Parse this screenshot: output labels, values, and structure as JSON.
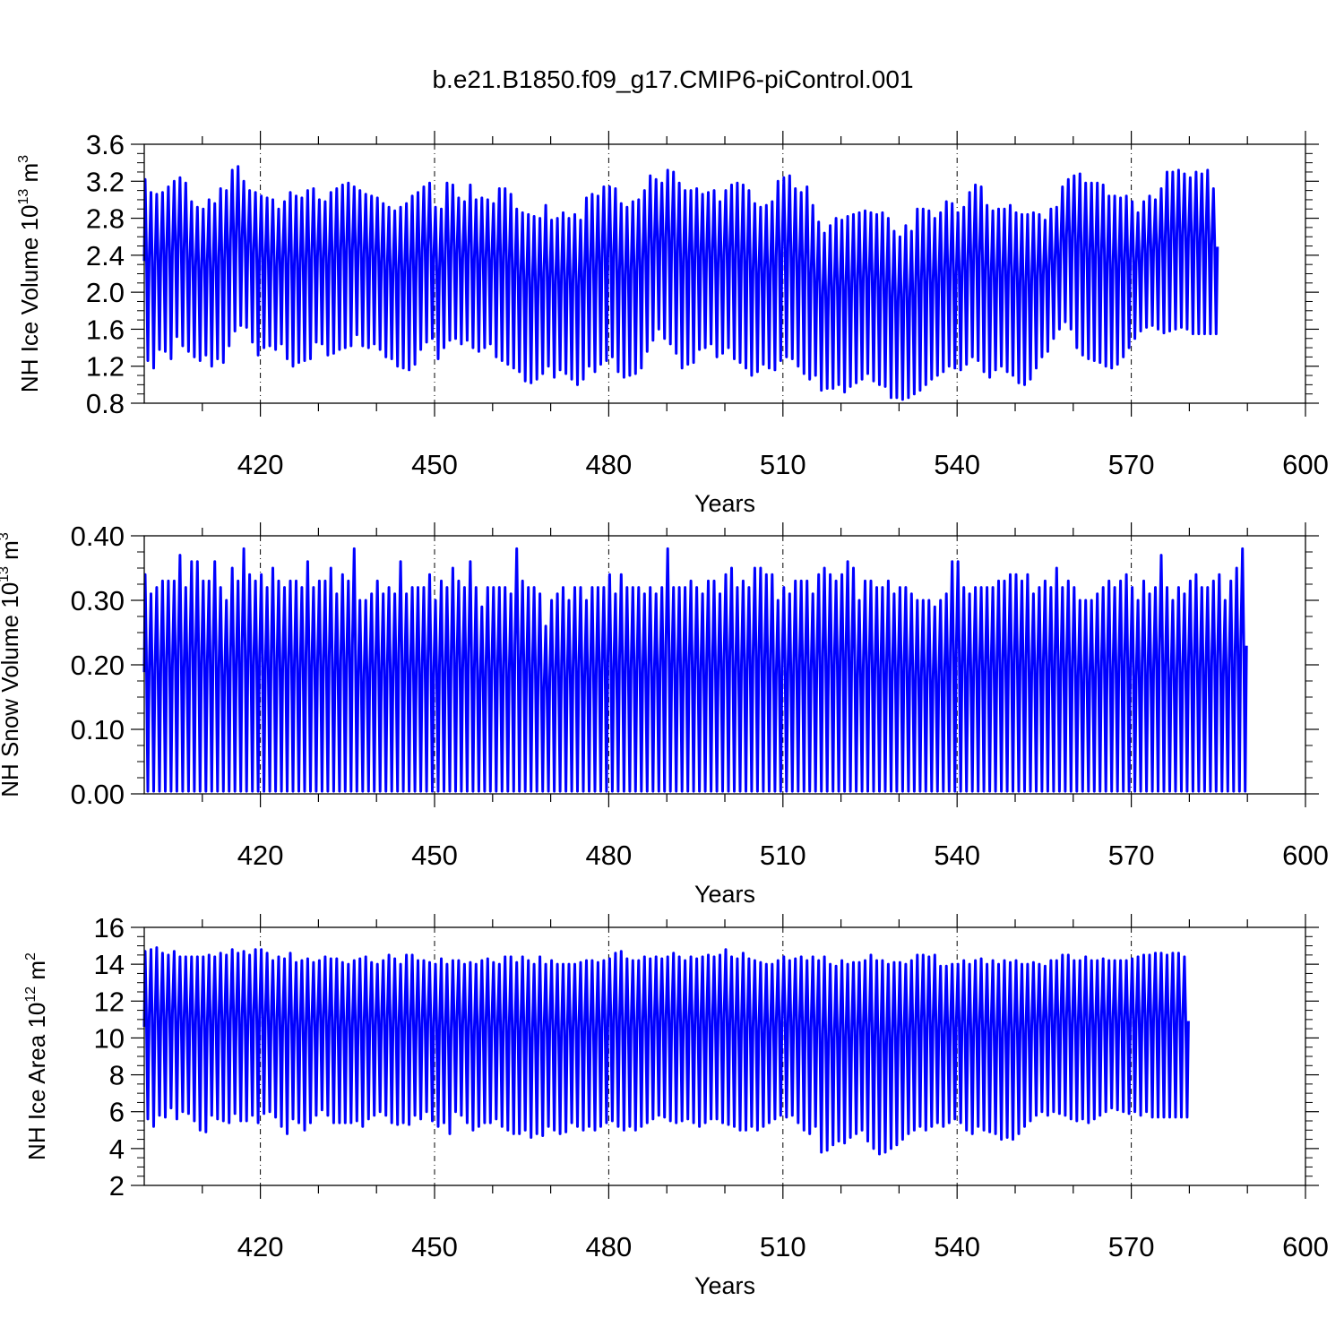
{
  "title": "b.e21.B1850.f09_g17.CMIP6-piControl.001",
  "colors": {
    "series": "#0000ff",
    "axis": "#000000",
    "grid": "#000000"
  },
  "chart_data": [
    {
      "type": "line",
      "ylabel": {
        "main": "NH Ice Volume 10",
        "exponent": "13",
        "unit": " m",
        "unit_exponent": "3"
      },
      "xlabel": "Years",
      "xlim": [
        400,
        600
      ],
      "ylim": [
        0.8,
        3.6
      ],
      "xticks": [
        420,
        450,
        480,
        510,
        540,
        570,
        600
      ],
      "yticks": [
        0.8,
        1.2,
        1.6,
        2.0,
        2.4,
        2.8,
        3.2,
        3.6
      ],
      "yticklabels": [
        "0.8",
        "1.2",
        "1.6",
        "2.0",
        "2.4",
        "2.8",
        "3.2",
        "3.6"
      ],
      "grid": "vertical dashed at major x ticks",
      "x_start": 400,
      "period_years": 1,
      "series": [
        {
          "annual_max": [
            3.22,
            3.08,
            3.06,
            3.08,
            3.14,
            3.2,
            3.24,
            3.18,
            2.98,
            2.92,
            2.9,
            3.0,
            2.96,
            3.12,
            3.1,
            3.32,
            3.36,
            3.2,
            3.1,
            3.08,
            3.04,
            3.02,
            3.0,
            2.9,
            2.98,
            3.08,
            3.04,
            3.02,
            3.1,
            3.12,
            3.0,
            2.98,
            3.08,
            3.12,
            3.16,
            3.18,
            3.14,
            3.1,
            3.06,
            3.04,
            3.02,
            2.96,
            2.92,
            2.88,
            2.92,
            2.96,
            3.04,
            3.08,
            3.14,
            3.18,
            2.92,
            2.9,
            3.18,
            3.16,
            3.02,
            2.98,
            3.16,
            3.0,
            3.02,
            3.0,
            2.96,
            3.12,
            3.12,
            3.06,
            2.9,
            2.86,
            2.84,
            2.82,
            2.8,
            2.94,
            2.78,
            2.8,
            2.86,
            2.8,
            2.84,
            2.78,
            3.02,
            3.06,
            3.04,
            3.14,
            3.14,
            3.12,
            2.96,
            2.92,
            2.98,
            3.0,
            3.1,
            3.26,
            3.22,
            3.18,
            3.32,
            3.3,
            3.18,
            3.1,
            3.1,
            3.12,
            3.06,
            3.08,
            3.1,
            2.98,
            3.1,
            3.16,
            3.18,
            3.16,
            3.1,
            2.96,
            2.92,
            2.94,
            2.98,
            3.2,
            3.24,
            3.26,
            3.12,
            3.08,
            3.14,
            2.94,
            2.76,
            2.64,
            2.72,
            2.8,
            2.78,
            2.82,
            2.84,
            2.86,
            2.88,
            2.86,
            2.84,
            2.86,
            2.8,
            2.66,
            2.6,
            2.72,
            2.66,
            2.9,
            2.9,
            2.88,
            2.8,
            2.86,
            2.98,
            2.96,
            2.86,
            2.92,
            3.08,
            3.16,
            3.14,
            2.94,
            2.88,
            2.9,
            2.9,
            2.94,
            2.86,
            2.84,
            2.84,
            2.86,
            2.84,
            2.78,
            2.9,
            2.92,
            3.14,
            3.22,
            3.26,
            3.28,
            3.18,
            3.18,
            3.18,
            3.16,
            3.04,
            3.04,
            3.02,
            3.04,
            2.98,
            2.86,
            2.98,
            3.04,
            3.0,
            3.12,
            3.3,
            3.3,
            3.32,
            3.28,
            3.24,
            3.3,
            3.28,
            3.32,
            3.12
          ],
          "annual_min": [
            1.26,
            1.18,
            1.38,
            1.36,
            1.28,
            1.52,
            1.42,
            1.36,
            1.3,
            1.26,
            1.32,
            1.2,
            1.28,
            1.24,
            1.42,
            1.58,
            1.64,
            1.62,
            1.46,
            1.32,
            1.4,
            1.42,
            1.38,
            1.44,
            1.28,
            1.2,
            1.24,
            1.26,
            1.28,
            1.46,
            1.44,
            1.32,
            1.34,
            1.38,
            1.4,
            1.42,
            1.54,
            1.42,
            1.4,
            1.44,
            1.38,
            1.3,
            1.28,
            1.2,
            1.18,
            1.16,
            1.22,
            1.38,
            1.46,
            1.5,
            1.28,
            1.4,
            1.48,
            1.5,
            1.44,
            1.48,
            1.4,
            1.36,
            1.4,
            1.44,
            1.3,
            1.26,
            1.22,
            1.18,
            1.14,
            1.04,
            1.02,
            1.06,
            1.12,
            1.2,
            1.08,
            1.16,
            1.12,
            1.06,
            1.0,
            1.06,
            1.2,
            1.14,
            1.22,
            1.26,
            1.3,
            1.14,
            1.08,
            1.1,
            1.12,
            1.18,
            1.36,
            1.48,
            1.6,
            1.5,
            1.44,
            1.34,
            1.18,
            1.22,
            1.24,
            1.38,
            1.4,
            1.44,
            1.3,
            1.34,
            1.4,
            1.28,
            1.24,
            1.18,
            1.1,
            1.14,
            1.22,
            1.18,
            1.16,
            1.26,
            1.3,
            1.28,
            1.2,
            1.12,
            1.06,
            1.1,
            0.94,
            0.96,
            0.96,
            1.0,
            0.92,
            0.98,
            1.02,
            1.06,
            1.12,
            1.04,
            1.0,
            0.98,
            0.86,
            0.86,
            0.84,
            0.86,
            0.9,
            0.94,
            1.0,
            1.06,
            1.1,
            1.14,
            1.2,
            1.18,
            1.16,
            1.22,
            1.3,
            1.26,
            1.14,
            1.08,
            1.16,
            1.2,
            1.14,
            1.1,
            1.02,
            1.0,
            1.06,
            1.18,
            1.3,
            1.36,
            1.5,
            1.6,
            1.68,
            1.6,
            1.4,
            1.32,
            1.28,
            1.26,
            1.24,
            1.2,
            1.18,
            1.22,
            1.3,
            1.4,
            1.5,
            1.58,
            1.62,
            1.64,
            1.6,
            1.56,
            1.58,
            1.6,
            1.62,
            1.6,
            1.55
          ]
        }
      ]
    },
    {
      "type": "line",
      "ylabel": {
        "main": "NH Snow Volume 10",
        "exponent": "13",
        "unit": " m",
        "unit_exponent": "3"
      },
      "xlabel": "Years",
      "xlim": [
        400,
        600
      ],
      "ylim": [
        0.0,
        0.4
      ],
      "xticks": [
        420,
        450,
        480,
        510,
        540,
        570,
        600
      ],
      "yticks": [
        0.0,
        0.1,
        0.2,
        0.3,
        0.4
      ],
      "yticklabels": [
        "0.00",
        "0.10",
        "0.20",
        "0.30",
        "0.40"
      ],
      "grid": "vertical dashed at major x ticks",
      "x_start": 400,
      "period_years": 1,
      "series": [
        {
          "annual_max": [
            0.34,
            0.31,
            0.32,
            0.33,
            0.33,
            0.33,
            0.37,
            0.32,
            0.36,
            0.36,
            0.33,
            0.33,
            0.36,
            0.32,
            0.3,
            0.35,
            0.33,
            0.38,
            0.34,
            0.33,
            0.34,
            0.32,
            0.35,
            0.33,
            0.32,
            0.33,
            0.33,
            0.32,
            0.36,
            0.32,
            0.33,
            0.33,
            0.35,
            0.31,
            0.34,
            0.33,
            0.38,
            0.3,
            0.3,
            0.31,
            0.33,
            0.31,
            0.32,
            0.31,
            0.36,
            0.31,
            0.32,
            0.32,
            0.32,
            0.34,
            0.3,
            0.33,
            0.32,
            0.35,
            0.33,
            0.32,
            0.36,
            0.32,
            0.29,
            0.32,
            0.32,
            0.32,
            0.32,
            0.31,
            0.38,
            0.33,
            0.32,
            0.32,
            0.31,
            0.26,
            0.3,
            0.31,
            0.32,
            0.3,
            0.32,
            0.32,
            0.3,
            0.32,
            0.32,
            0.32,
            0.34,
            0.31,
            0.34,
            0.32,
            0.32,
            0.32,
            0.31,
            0.32,
            0.31,
            0.32,
            0.38,
            0.32,
            0.32,
            0.32,
            0.33,
            0.32,
            0.31,
            0.33,
            0.33,
            0.31,
            0.34,
            0.35,
            0.32,
            0.33,
            0.32,
            0.35,
            0.35,
            0.34,
            0.34,
            0.3,
            0.32,
            0.31,
            0.33,
            0.33,
            0.33,
            0.31,
            0.34,
            0.35,
            0.34,
            0.33,
            0.34,
            0.36,
            0.35,
            0.3,
            0.33,
            0.33,
            0.32,
            0.32,
            0.33,
            0.31,
            0.32,
            0.32,
            0.31,
            0.3,
            0.3,
            0.3,
            0.29,
            0.3,
            0.31,
            0.36,
            0.36,
            0.32,
            0.31,
            0.32,
            0.32,
            0.32,
            0.32,
            0.33,
            0.33,
            0.34,
            0.34,
            0.33,
            0.34,
            0.31,
            0.32,
            0.33,
            0.32,
            0.35,
            0.32,
            0.33,
            0.32,
            0.3,
            0.3,
            0.3,
            0.31,
            0.32,
            0.33,
            0.32,
            0.33,
            0.34,
            0.32,
            0.3,
            0.33,
            0.31,
            0.32,
            0.37,
            0.32,
            0.3,
            0.32,
            0.31,
            0.33,
            0.34,
            0.32,
            0.32,
            0.33,
            0.34,
            0.3,
            0.33,
            0.35,
            0.38
          ],
          "annual_min": [
            0.004
          ]
        }
      ]
    },
    {
      "type": "line",
      "ylabel": {
        "main": "NH Ice Area 10",
        "exponent": "12",
        "unit": " m",
        "unit_exponent": "2"
      },
      "xlabel": "Years",
      "xlim": [
        400,
        600
      ],
      "ylim": [
        2,
        16
      ],
      "xticks": [
        420,
        450,
        480,
        510,
        540,
        570,
        600
      ],
      "yticks": [
        2,
        4,
        6,
        8,
        10,
        12,
        14,
        16
      ],
      "yticklabels": [
        "2",
        "4",
        "6",
        "8",
        "10",
        "12",
        "14",
        "16"
      ],
      "grid": "vertical dashed at major x ticks",
      "x_start": 400,
      "period_years": 1,
      "series": [
        {
          "annual_max": [
            14.7,
            14.8,
            14.9,
            14.6,
            14.5,
            14.7,
            14.4,
            14.4,
            14.4,
            14.4,
            14.4,
            14.5,
            14.4,
            14.6,
            14.5,
            14.8,
            14.6,
            14.7,
            14.5,
            14.8,
            14.8,
            14.6,
            14.2,
            14.4,
            14.3,
            14.6,
            14.1,
            14.2,
            14.3,
            14.1,
            14.2,
            14.4,
            14.3,
            14.3,
            14.1,
            14.0,
            14.2,
            14.3,
            14.4,
            14.1,
            14.0,
            14.2,
            14.5,
            14.3,
            14.0,
            14.5,
            14.5,
            14.2,
            14.2,
            14.1,
            14.0,
            14.3,
            14.0,
            14.2,
            14.2,
            14.0,
            14.1,
            14.0,
            14.2,
            14.3,
            14.1,
            14.0,
            14.4,
            14.4,
            14.1,
            14.4,
            14.2,
            14.0,
            14.4,
            14.0,
            14.2,
            14.0,
            14.0,
            14.0,
            14.0,
            14.1,
            14.2,
            14.2,
            14.1,
            14.2,
            14.3,
            14.6,
            14.7,
            14.3,
            14.2,
            14.2,
            14.4,
            14.3,
            14.4,
            14.3,
            14.4,
            14.6,
            14.4,
            14.2,
            14.4,
            14.3,
            14.4,
            14.5,
            14.4,
            14.5,
            14.8,
            14.4,
            14.3,
            14.6,
            14.3,
            14.2,
            14.1,
            14.0,
            14.0,
            14.2,
            14.4,
            14.2,
            14.3,
            14.4,
            14.2,
            14.4,
            14.2,
            14.4,
            14.0,
            13.9,
            14.2,
            14.0,
            14.1,
            14.1,
            14.2,
            14.5,
            14.2,
            14.2,
            14.0,
            14.1,
            14.1,
            14.0,
            14.2,
            14.5,
            14.5,
            14.4,
            14.5,
            13.9,
            13.9,
            14.0,
            14.0,
            14.2,
            14.0,
            14.2,
            14.3,
            14.0,
            14.2,
            14.0,
            14.2,
            14.1,
            14.2,
            14.0,
            14.0,
            14.1,
            14.0,
            13.9,
            14.2,
            14.2,
            14.5,
            14.5,
            14.2,
            14.2,
            14.4,
            14.2,
            14.2,
            14.3,
            14.2,
            14.2,
            14.2,
            14.2,
            14.3,
            14.4,
            14.5,
            14.5,
            14.6,
            14.6,
            14.5,
            14.6,
            14.6,
            14.4
          ],
          "annual_min": [
            5.6,
            5.2,
            5.8,
            5.7,
            6.2,
            5.6,
            6.0,
            5.9,
            5.5,
            5.0,
            4.9,
            5.8,
            5.6,
            5.5,
            5.4,
            5.9,
            5.5,
            5.5,
            5.8,
            5.4,
            5.9,
            6.0,
            5.7,
            5.2,
            4.8,
            5.6,
            5.4,
            5.0,
            5.4,
            5.8,
            6.1,
            5.8,
            5.4,
            5.4,
            5.4,
            5.4,
            5.5,
            5.2,
            5.6,
            5.8,
            6.0,
            5.8,
            5.4,
            5.3,
            5.4,
            5.3,
            5.8,
            5.6,
            6.0,
            5.5,
            5.2,
            5.4,
            4.8,
            6.0,
            5.8,
            5.4,
            5.0,
            5.2,
            5.4,
            5.4,
            5.6,
            5.2,
            5.0,
            4.8,
            4.8,
            5.0,
            4.6,
            4.8,
            4.7,
            5.2,
            5.0,
            4.8,
            4.9,
            5.4,
            5.2,
            5.0,
            5.2,
            5.0,
            5.2,
            5.4,
            5.5,
            5.2,
            5.0,
            5.2,
            5.0,
            5.2,
            5.4,
            5.6,
            5.8,
            5.7,
            5.5,
            5.4,
            5.5,
            5.6,
            5.4,
            5.2,
            5.4,
            5.6,
            5.6,
            5.4,
            5.3,
            5.2,
            5.0,
            5.0,
            5.2,
            5.0,
            5.2,
            5.4,
            5.6,
            5.8,
            5.7,
            5.8,
            5.4,
            5.0,
            4.8,
            5.2,
            3.8,
            3.9,
            4.2,
            4.4,
            4.3,
            4.6,
            4.8,
            5.0,
            4.4,
            4.0,
            3.7,
            3.8,
            4.0,
            4.2,
            4.5,
            4.8,
            5.0,
            5.2,
            5.0,
            5.2,
            5.4,
            5.2,
            5.4,
            5.6,
            5.4,
            5.0,
            4.8,
            5.2,
            5.0,
            4.9,
            4.8,
            4.5,
            4.6,
            4.5,
            4.8,
            5.2,
            5.5,
            5.8,
            6.0,
            5.8,
            6.0,
            5.9,
            5.8,
            5.6,
            5.5,
            5.6,
            5.4,
            5.6,
            5.8,
            6.0,
            6.2,
            6.1,
            6.0,
            5.9,
            6.0,
            5.8,
            6.0,
            5.7
          ]
        }
      ]
    }
  ]
}
